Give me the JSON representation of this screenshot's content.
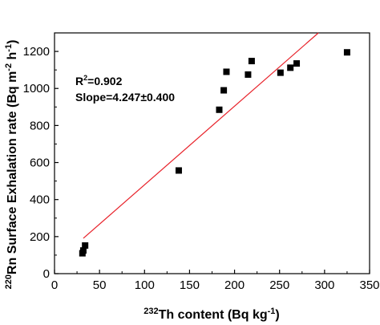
{
  "chart_data": {
    "type": "scatter",
    "title": "",
    "xlabel": {
      "pre": "",
      "sup": "232",
      "main": "Th content (Bq kg",
      "unit_sup": "-1",
      "post": ")"
    },
    "ylabel": {
      "sup": "220",
      "main": "Rn Surface Exhalation rate (Bq m",
      "unit_sup1": "-2",
      "mid": " h",
      "unit_sup2": "-1",
      "post": ")"
    },
    "xlim": [
      0,
      350
    ],
    "ylim": [
      0,
      1300
    ],
    "x_ticks": [
      0,
      50,
      100,
      150,
      200,
      250,
      300,
      350
    ],
    "y_ticks": [
      0,
      200,
      400,
      600,
      800,
      1000,
      1200
    ],
    "x_tick_labels": [
      "0",
      "50",
      "100",
      "150",
      "200",
      "250",
      "300",
      "350"
    ],
    "y_tick_labels": [
      "0",
      "200",
      "400",
      "600",
      "800",
      "1000",
      "1200"
    ],
    "grid": false,
    "points": [
      {
        "x": 31,
        "y": 110
      },
      {
        "x": 32,
        "y": 125
      },
      {
        "x": 34,
        "y": 152
      },
      {
        "x": 138,
        "y": 557
      },
      {
        "x": 183,
        "y": 885
      },
      {
        "x": 188,
        "y": 990
      },
      {
        "x": 191,
        "y": 1090
      },
      {
        "x": 215,
        "y": 1075
      },
      {
        "x": 219,
        "y": 1148
      },
      {
        "x": 251,
        "y": 1085
      },
      {
        "x": 262,
        "y": 1112
      },
      {
        "x": 269,
        "y": 1135
      },
      {
        "x": 325,
        "y": 1195
      }
    ],
    "fit_line": {
      "x_start": 32,
      "x_end": 350,
      "slope": 4.247,
      "intercept": 55,
      "color": "#e8222a"
    },
    "annotations": {
      "r2_prefix": "R",
      "r2_sup": "2",
      "r2_value": "=0.902",
      "slope_text": "Slope=4.247±0.400"
    },
    "marker_color": "#000000"
  }
}
